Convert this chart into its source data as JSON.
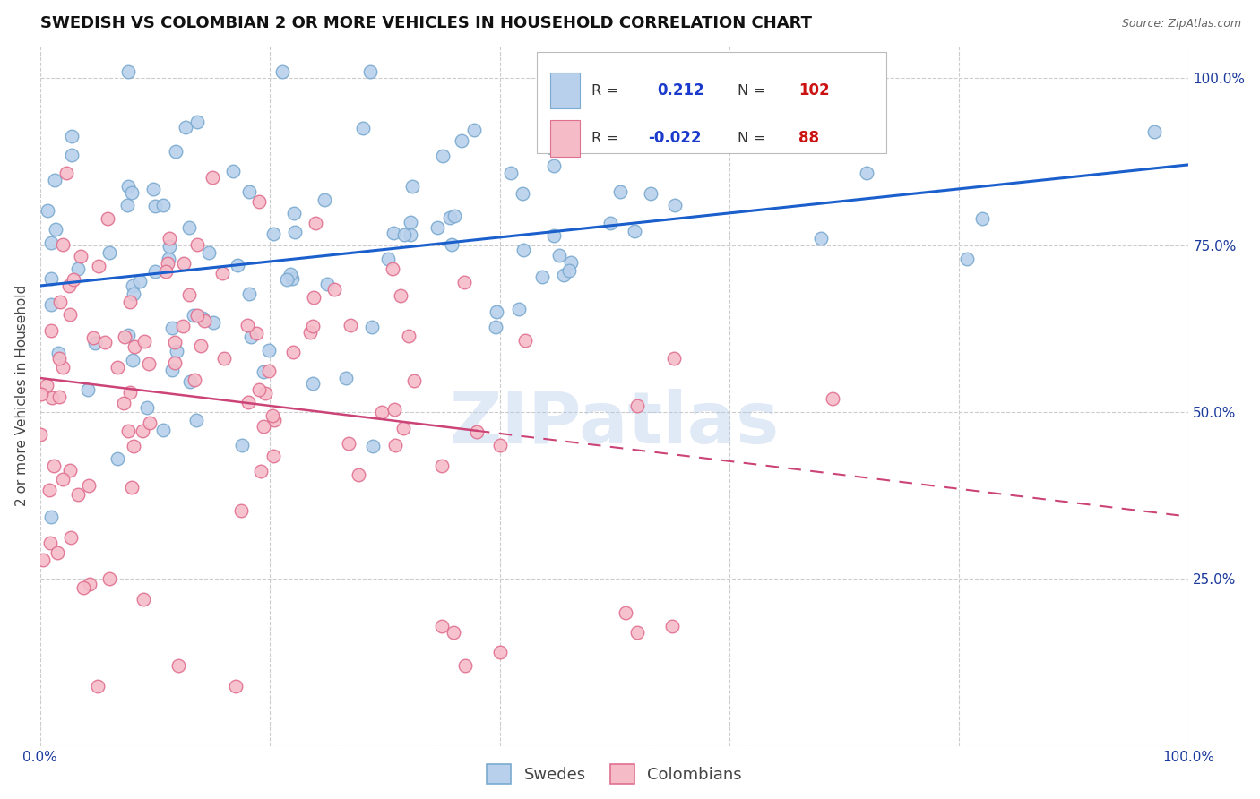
{
  "title": "SWEDISH VS COLOMBIAN 2 OR MORE VEHICLES IN HOUSEHOLD CORRELATION CHART",
  "source": "Source: ZipAtlas.com",
  "ylabel": "2 or more Vehicles in Household",
  "xlim": [
    0.0,
    1.0
  ],
  "ylim": [
    0.0,
    1.05
  ],
  "x_ticks": [
    0.0,
    0.2,
    0.4,
    0.6,
    0.8,
    1.0
  ],
  "y_ticks": [
    0.0,
    0.25,
    0.5,
    0.75,
    1.0
  ],
  "y_tick_labels_right": [
    "",
    "25.0%",
    "50.0%",
    "75.0%",
    "100.0%"
  ],
  "swedes_R": 0.212,
  "swedes_N": 102,
  "colombians_R": -0.022,
  "colombians_N": 88,
  "swede_dot_face": "#b8d0eb",
  "swede_dot_edge": "#7aaad0",
  "colombian_dot_face": "#f5bcc8",
  "colombian_dot_edge": "#e07090",
  "regression_blue": "#1a5fcc",
  "regression_pink": "#cc4477",
  "legend_swedes": "Swedes",
  "legend_colombians": "Colombians",
  "background_color": "#ffffff",
  "grid_color": "#cccccc",
  "watermark": "ZIPatlas",
  "title_fontsize": 13,
  "axis_label_fontsize": 11,
  "tick_fontsize": 11
}
